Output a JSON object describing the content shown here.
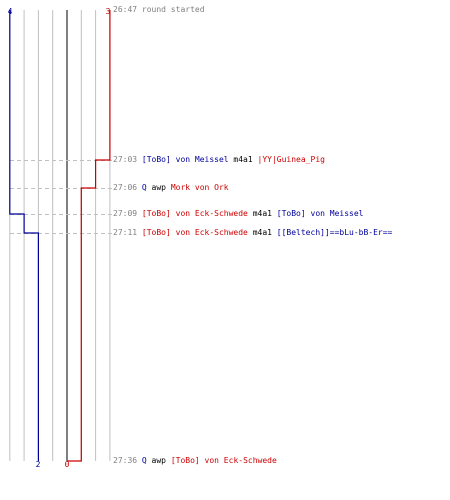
{
  "colors": {
    "blue": "#000099",
    "red": "#cc0000",
    "gray_text": "#808080",
    "grid": "#c0c0c0",
    "center": "#808080",
    "dash": "#c0c0c0"
  },
  "chart_data": {
    "type": "line",
    "title": "",
    "xlabel": "",
    "ylabel": "",
    "x_axis": "players alive (blue side left, red side right, 0 at center)",
    "top_labels": {
      "blue": "4",
      "red": "3"
    },
    "bottom_labels": {
      "blue": "2",
      "red": "0"
    },
    "series": [
      {
        "name": "",
        "color": "#000099",
        "steps": [
          [
            "26:47",
            4
          ],
          [
            "27:09",
            3
          ],
          [
            "27:11",
            2
          ],
          [
            "27:36",
            2
          ]
        ]
      },
      {
        "name": "",
        "color": "#cc0000",
        "steps": [
          [
            "26:47",
            3
          ],
          [
            "27:03",
            2
          ],
          [
            "27:06",
            1
          ],
          [
            "27:36",
            0
          ]
        ]
      }
    ],
    "grid": true
  },
  "events": [
    {
      "time": "26:47",
      "parts": [
        {
          "t": " round started",
          "c": "gray"
        }
      ],
      "dashed": false
    },
    {
      "time": "27:03",
      "parts": [
        {
          "t": " [ToBo] von Meissel",
          "c": "blue"
        },
        {
          "t": " m4a1 ",
          "c": "black"
        },
        {
          "t": "|YY|Guinea_Pig",
          "c": "red"
        }
      ],
      "dashed": true
    },
    {
      "time": "27:06",
      "parts": [
        {
          "t": " Q",
          "c": "blue"
        },
        {
          "t": " awp ",
          "c": "black"
        },
        {
          "t": "Mork von Ork",
          "c": "red"
        }
      ],
      "dashed": true
    },
    {
      "time": "27:09",
      "parts": [
        {
          "t": " [ToBo] von Eck-Schwede",
          "c": "red"
        },
        {
          "t": " m4a1 ",
          "c": "black"
        },
        {
          "t": "[ToBo] von Meissel",
          "c": "blue"
        }
      ],
      "dashed": true
    },
    {
      "time": "27:11",
      "parts": [
        {
          "t": " [ToBo] von Eck-Schwede",
          "c": "red"
        },
        {
          "t": " m4a1 ",
          "c": "black"
        },
        {
          "t": "[[Beltech]]==bLu-bB-Er==",
          "c": "blue"
        }
      ],
      "dashed": true
    },
    {
      "time": "27:36",
      "parts": [
        {
          "t": " Q",
          "c": "blue"
        },
        {
          "t": " awp ",
          "c": "black"
        },
        {
          "t": "[ToBo] von Eck-Schwede",
          "c": "red"
        }
      ],
      "dashed": false
    }
  ]
}
